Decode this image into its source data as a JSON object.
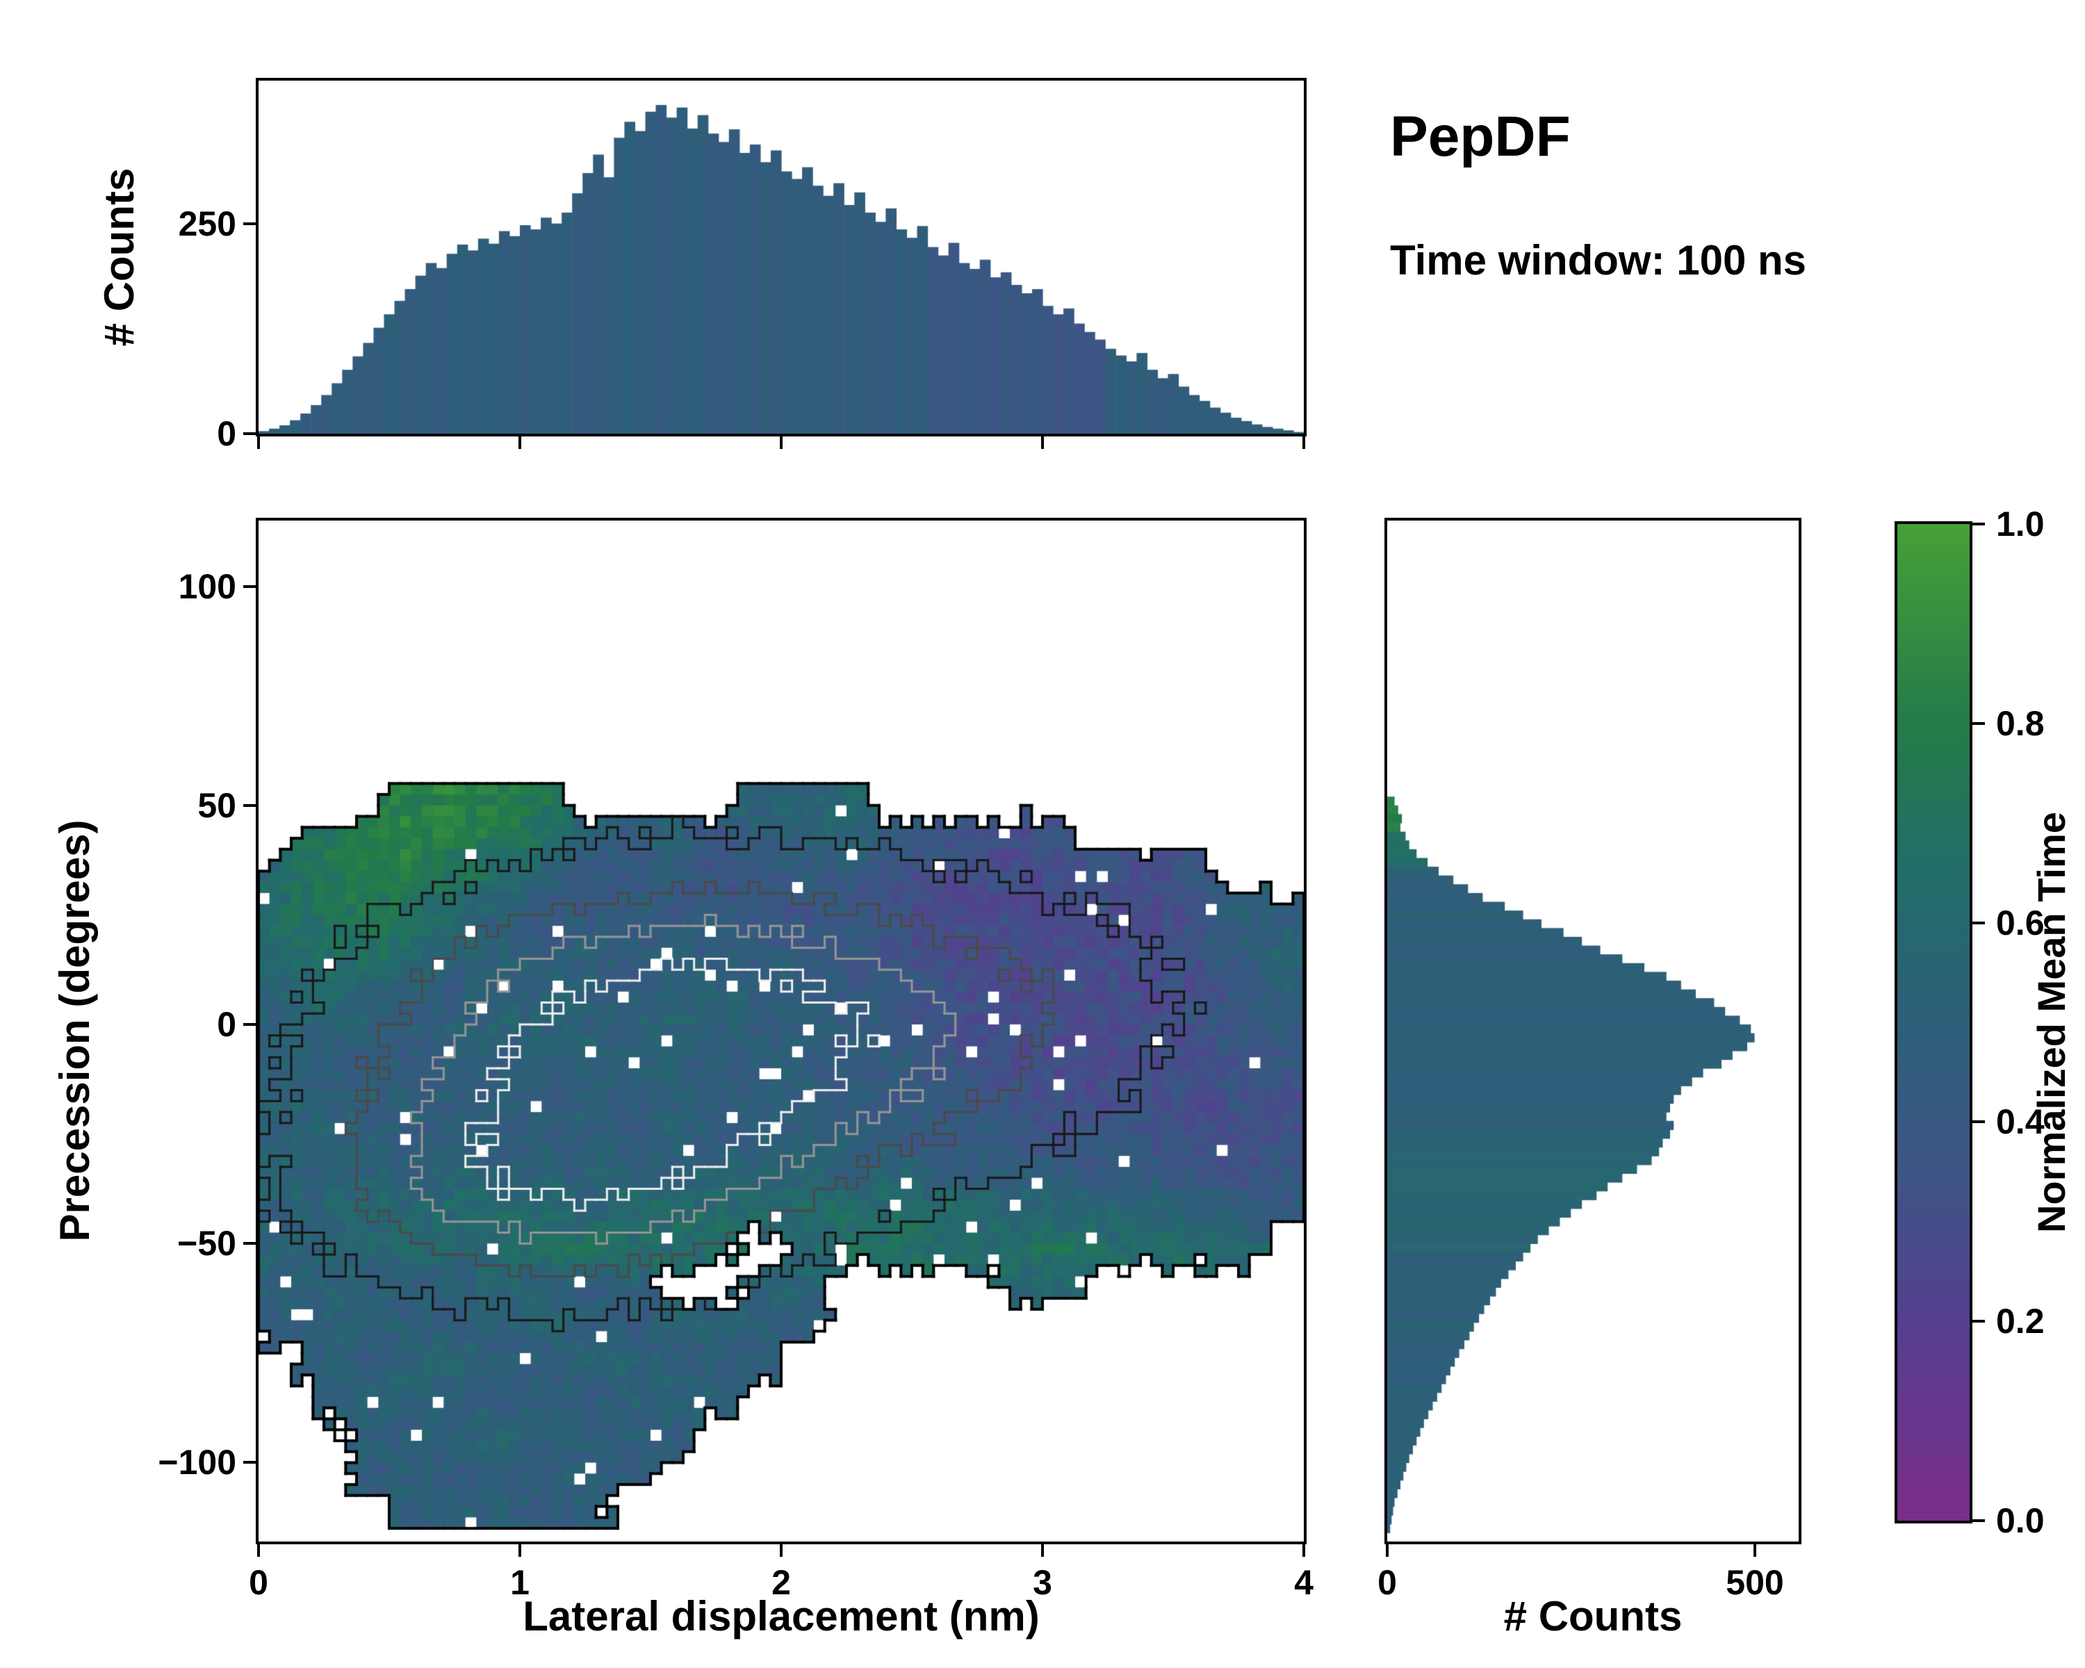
{
  "title": {
    "main": "PepDF",
    "subtitle": "Time window: 100 ns"
  },
  "axes": {
    "top_hist": {
      "ylabel": "# Counts",
      "yticks": [
        "250",
        "0"
      ]
    },
    "main": {
      "xlabel": "Lateral displacement (nm)",
      "ylabel": "Precession (degrees)",
      "xticks": [
        "0",
        "1",
        "2",
        "3",
        "4"
      ],
      "yticks": [
        "100",
        "50",
        "0",
        "−50",
        "−100"
      ]
    },
    "right_hist": {
      "xlabel": "# Counts",
      "xticks": [
        "0",
        "500"
      ]
    },
    "colorbar": {
      "label": "Normalized Mean Time",
      "ticks": [
        "1.0",
        "0.8",
        "0.6",
        "0.4",
        "0.2",
        "0.0"
      ]
    }
  },
  "colors": {
    "background": "#ffffff",
    "axis": "#000000",
    "colormap_stops": [
      [
        0.0,
        "#7b2d8b"
      ],
      [
        0.2,
        "#55408f"
      ],
      [
        0.35,
        "#3d5586"
      ],
      [
        0.5,
        "#2d5f78"
      ],
      [
        0.65,
        "#226d69"
      ],
      [
        0.8,
        "#237c48"
      ],
      [
        1.0,
        "#46a038"
      ]
    ],
    "contour_colors": [
      "#000000",
      "#181818",
      "#4a4a4a",
      "#969696",
      "#efefef"
    ]
  },
  "chart_data": [
    {
      "type": "bar",
      "name": "lateral_displacement_histogram",
      "ylabel": "# Counts",
      "x_range": [
        0,
        4
      ],
      "bin_width": 0.04,
      "ylim": [
        0,
        420
      ],
      "values": [
        3,
        6,
        10,
        16,
        24,
        34,
        46,
        60,
        76,
        92,
        108,
        126,
        142,
        158,
        172,
        188,
        203,
        197,
        214,
        225,
        218,
        232,
        226,
        241,
        235,
        248,
        243,
        257,
        250,
        263,
        286,
        310,
        332,
        305,
        352,
        371,
        360,
        383,
        391,
        376,
        388,
        363,
        379,
        357,
        347,
        362,
        334,
        344,
        323,
        337,
        312,
        303,
        317,
        295,
        283,
        298,
        272,
        287,
        263,
        252,
        268,
        243,
        233,
        247,
        222,
        212,
        227,
        203,
        196,
        207,
        186,
        192,
        177,
        167,
        172,
        152,
        142,
        149,
        131,
        121,
        112,
        101,
        93,
        86,
        96,
        76,
        66,
        71,
        56,
        46,
        39,
        31,
        25,
        19,
        15,
        11,
        8,
        6,
        4,
        2
      ]
    },
    {
      "type": "heatmap",
      "name": "precession_vs_lateral_mean_time",
      "xlabel": "Lateral displacement (nm)",
      "ylabel": "Precession (degrees)",
      "value_label": "Normalized Mean Time",
      "value_range": [
        0,
        1
      ],
      "x_range": [
        0,
        4
      ],
      "y_axis_range": [
        -118,
        115
      ],
      "grid_x_range": [
        0,
        4
      ],
      "grid_y_top": 55,
      "grid_y_bottom": -115,
      "empty_value": -1,
      "contour_levels": [
        0.2,
        0.42,
        0.62,
        0.82
      ],
      "values_grid_rows_top_to_bottom": [
        [
          -1,
          -1,
          -1,
          0.8,
          0.85,
          0.8,
          0.75,
          -1,
          -1,
          -1,
          -1,
          0.55,
          0.5,
          0.6,
          -1,
          -1,
          -1,
          -1,
          -1,
          -1,
          -1,
          -1,
          -1,
          -1
        ],
        [
          -1,
          0.7,
          0.8,
          0.85,
          0.8,
          0.75,
          0.7,
          0.5,
          0.45,
          0.5,
          0.4,
          0.45,
          0.5,
          0.55,
          0.45,
          0.4,
          0.35,
          0.3,
          0.35,
          -1,
          -1,
          -1,
          -1,
          -1
        ],
        [
          0.6,
          0.75,
          0.8,
          0.75,
          0.7,
          0.65,
          0.5,
          0.45,
          0.4,
          0.45,
          0.35,
          0.4,
          0.45,
          0.4,
          0.35,
          0.3,
          0.3,
          0.28,
          0.3,
          0.35,
          0.3,
          0.4,
          -1,
          -1
        ],
        [
          0.65,
          0.7,
          0.75,
          0.7,
          0.6,
          0.5,
          0.45,
          0.4,
          0.45,
          0.4,
          0.45,
          0.4,
          0.35,
          0.4,
          0.35,
          0.3,
          0.28,
          0.3,
          0.28,
          0.3,
          0.28,
          0.35,
          0.5,
          0.45
        ],
        [
          0.6,
          0.65,
          0.7,
          0.6,
          0.55,
          0.5,
          0.45,
          0.5,
          0.45,
          0.5,
          0.45,
          0.4,
          0.45,
          0.4,
          0.35,
          0.3,
          0.3,
          0.28,
          0.3,
          0.28,
          0.3,
          0.35,
          0.45,
          0.55
        ],
        [
          0.55,
          0.6,
          0.55,
          0.5,
          0.45,
          0.5,
          0.55,
          0.5,
          0.45,
          0.5,
          0.55,
          0.5,
          0.45,
          0.4,
          0.45,
          0.35,
          0.3,
          0.28,
          0.3,
          0.3,
          0.28,
          0.3,
          0.4,
          0.5
        ],
        [
          0.5,
          0.55,
          0.5,
          0.45,
          0.5,
          0.55,
          0.5,
          0.52,
          0.5,
          0.55,
          0.5,
          0.45,
          0.5,
          0.45,
          0.4,
          0.35,
          0.3,
          0.3,
          0.28,
          0.3,
          0.3,
          0.35,
          0.4,
          0.45
        ],
        [
          0.5,
          0.45,
          0.5,
          0.45,
          0.5,
          0.45,
          0.5,
          0.5,
          0.52,
          0.5,
          0.45,
          0.5,
          0.45,
          0.4,
          0.45,
          0.4,
          0.35,
          0.3,
          0.3,
          0.28,
          0.3,
          0.3,
          0.35,
          0.4
        ],
        [
          0.55,
          0.5,
          0.45,
          0.5,
          0.45,
          0.5,
          0.45,
          0.5,
          0.45,
          0.5,
          0.5,
          0.45,
          0.5,
          0.45,
          0.4,
          0.45,
          0.4,
          0.35,
          0.3,
          0.3,
          0.35,
          0.3,
          0.35,
          0.3
        ],
        [
          0.5,
          0.55,
          0.5,
          0.45,
          0.5,
          0.5,
          0.45,
          0.5,
          0.45,
          0.5,
          0.45,
          0.5,
          0.45,
          0.5,
          0.45,
          0.4,
          0.45,
          0.4,
          0.35,
          0.4,
          0.35,
          0.3,
          0.3,
          0.35
        ],
        [
          0.55,
          0.5,
          0.55,
          0.5,
          0.55,
          0.5,
          0.55,
          0.5,
          0.55,
          0.5,
          0.55,
          0.5,
          0.55,
          0.5,
          0.55,
          0.5,
          0.45,
          0.5,
          0.45,
          0.4,
          0.45,
          0.4,
          0.35,
          0.4
        ],
        [
          0.5,
          0.55,
          0.6,
          0.55,
          0.6,
          0.65,
          0.6,
          0.55,
          0.6,
          0.65,
          0.6,
          0.65,
          0.6,
          0.65,
          0.6,
          0.65,
          0.6,
          0.55,
          0.6,
          0.55,
          0.5,
          0.55,
          0.5,
          0.45
        ],
        [
          0.55,
          0.5,
          0.55,
          0.6,
          0.55,
          0.6,
          0.65,
          0.7,
          0.65,
          0.6,
          0.65,
          -1,
          0.6,
          0.65,
          0.7,
          0.65,
          0.6,
          0.65,
          0.7,
          0.65,
          0.6,
          0.65,
          0.6,
          -1
        ],
        [
          0.5,
          0.55,
          0.5,
          0.45,
          0.5,
          0.55,
          0.5,
          0.45,
          0.5,
          -1,
          -1,
          0.5,
          0.55,
          -1,
          -1,
          -1,
          -1,
          0.55,
          0.6,
          -1,
          -1,
          -1,
          -1,
          -1
        ],
        [
          0.45,
          0.5,
          0.55,
          0.5,
          0.45,
          0.5,
          0.55,
          0.5,
          0.45,
          0.5,
          0.55,
          0.5,
          0.45,
          -1,
          -1,
          -1,
          -1,
          -1,
          -1,
          -1,
          -1,
          -1,
          -1,
          -1
        ],
        [
          -1,
          0.5,
          0.45,
          0.5,
          0.55,
          0.5,
          0.45,
          0.5,
          0.55,
          0.5,
          0.45,
          0.5,
          -1,
          -1,
          -1,
          -1,
          -1,
          -1,
          -1,
          -1,
          -1,
          -1,
          -1,
          -1
        ],
        [
          -1,
          0.45,
          0.5,
          0.55,
          0.5,
          0.45,
          0.5,
          0.45,
          0.5,
          0.55,
          0.5,
          -1,
          -1,
          -1,
          -1,
          -1,
          -1,
          -1,
          -1,
          -1,
          -1,
          -1,
          -1,
          -1
        ],
        [
          -1,
          -1,
          0.5,
          0.45,
          0.5,
          0.55,
          0.5,
          0.45,
          0.5,
          0.45,
          -1,
          -1,
          -1,
          -1,
          -1,
          -1,
          -1,
          -1,
          -1,
          -1,
          -1,
          -1,
          -1,
          -1
        ],
        [
          -1,
          -1,
          0.45,
          0.5,
          0.45,
          0.5,
          0.45,
          0.5,
          0.45,
          -1,
          -1,
          -1,
          -1,
          -1,
          -1,
          -1,
          -1,
          -1,
          -1,
          -1,
          -1,
          -1,
          -1,
          -1
        ],
        [
          -1,
          -1,
          -1,
          0.5,
          0.45,
          0.5,
          0.45,
          0.5,
          -1,
          -1,
          -1,
          -1,
          -1,
          -1,
          -1,
          -1,
          -1,
          -1,
          -1,
          -1,
          -1,
          -1,
          -1,
          -1
        ]
      ]
    },
    {
      "type": "bar",
      "orientation": "horizontal",
      "name": "precession_histogram",
      "xlabel": "# Counts",
      "y_top": 52,
      "bin_height": 2,
      "xlim": [
        0,
        560
      ],
      "values": [
        10,
        15,
        20,
        18,
        25,
        30,
        40,
        55,
        70,
        90,
        110,
        130,
        160,
        185,
        210,
        240,
        265,
        290,
        320,
        350,
        380,
        400,
        420,
        445,
        460,
        480,
        495,
        500,
        490,
        470,
        455,
        430,
        415,
        400,
        390,
        385,
        380,
        390,
        385,
        375,
        370,
        360,
        340,
        320,
        300,
        285,
        265,
        250,
        235,
        220,
        205,
        195,
        185,
        175,
        165,
        155,
        148,
        140,
        132,
        125,
        118,
        112,
        105,
        98,
        92,
        86,
        80,
        74,
        68,
        62,
        56,
        50,
        45,
        40,
        35,
        30,
        26,
        22,
        18,
        14,
        10,
        8,
        6,
        4
      ]
    }
  ]
}
